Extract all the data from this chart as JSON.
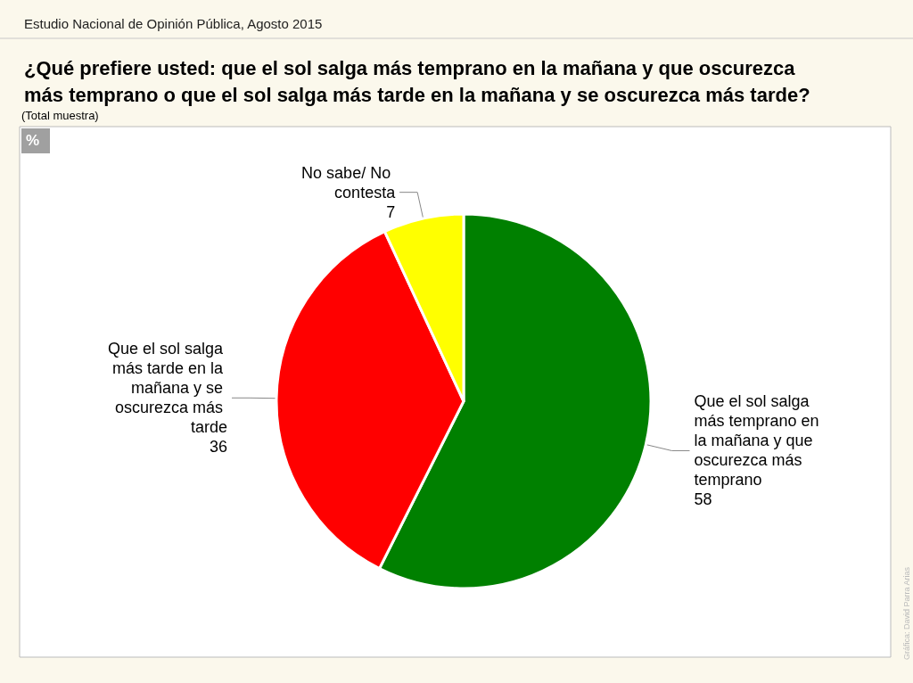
{
  "chart_data": {
    "type": "pie",
    "title": "¿Qué prefiere usted: que el sol salga más temprano en la mañana y que oscurezca más temprano o que el sol salga más tarde en la mañana y se oscurezca más tarde?",
    "subtitle": "Estudio Nacional de Opinión Pública, Agosto 2015",
    "categories": [
      "Que el sol salga más temprano en la mañana y que oscurezca más temprano",
      "Que el sol salga más tarde en la mañana y se oscurezca más tarde",
      "No sabe/ No contesta"
    ],
    "values": [
      58,
      36,
      7
    ],
    "colors": [
      "#008000",
      "#ff0000",
      "#ffff00"
    ],
    "data_labels": true,
    "legend": false,
    "annotations": [
      "(Total muestra)",
      "%",
      "Gráfica: David Parra Arias"
    ]
  }
}
